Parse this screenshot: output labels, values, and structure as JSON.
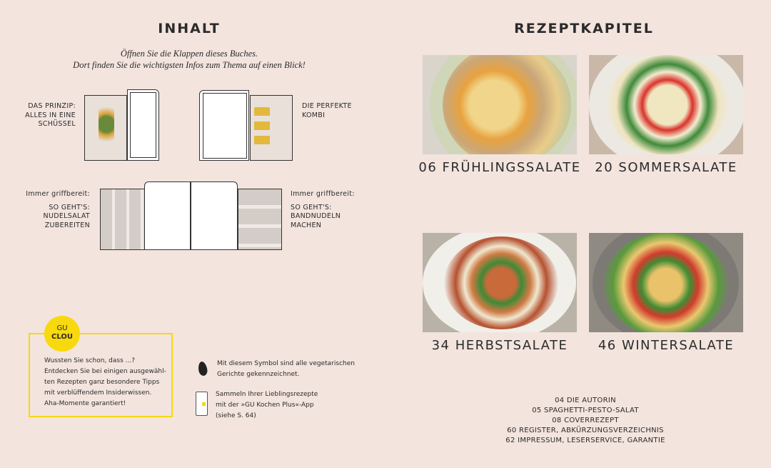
{
  "left": {
    "title": "INHALT",
    "intro": [
      "Öffnen Sie die Klappen dieses Buches.",
      "Dort finden Sie die wichtigsten Infos zum Thema auf einen Blick!"
    ],
    "flaps": [
      {
        "label": [
          "DAS PRINZIP:",
          "ALLES IN EINE",
          "SCHÜSSEL"
        ]
      },
      {
        "label": [
          "DIE PERFEKTE",
          "KOMBI"
        ]
      },
      {
        "pre": "Immer griffbereit:",
        "label": [
          "SO GEHT'S:",
          "NUDELSALAT",
          "ZUBEREITEN"
        ]
      },
      {
        "pre": "Immer griffbereit:",
        "label": [
          "SO GEHT'S:",
          "BANDNUDELN",
          "MACHEN"
        ]
      }
    ],
    "clou": {
      "badge_top": "GU",
      "badge_bottom": "CLOU",
      "lines": [
        "Wussten Sie schon, dass ...?",
        "Entdecken Sie bei einigen ausgewähl-",
        "ten Rezepten ganz besondere Tipps",
        "mit verblüffendem Insiderwissen.",
        "Aha-Momente garantiert!"
      ]
    },
    "veg_note": [
      "Mit diesem Symbol sind alle vegetarischen",
      "Gerichte gekennzeichnet."
    ],
    "app_note": [
      "Sammeln Ihrer Lieblingsrezepte",
      "mit der »GU Kochen Plus«-App",
      "(siehe S. 64)"
    ]
  },
  "right": {
    "title": "REZEPTKAPITEL",
    "chapters": [
      {
        "label": "06 FRÜHLINGSSALATE"
      },
      {
        "label": "20 SOMMERSALATE"
      },
      {
        "label": "34 HERBSTSALATE"
      },
      {
        "label": "46 WINTERSALATE"
      }
    ],
    "toc": [
      "04   DIE AUTORIN",
      "05   SPAGHETTI-PESTO-SALAT",
      "08   COVERREZEPT",
      "60   REGISTER, ABKÜRZUNGSVERZEICHNIS",
      "62   IMPRESSUM, LESERSERVICE, GARANTIE"
    ]
  },
  "colors": {
    "background": "#f3e4de",
    "accent_yellow": "#f5d90f"
  }
}
